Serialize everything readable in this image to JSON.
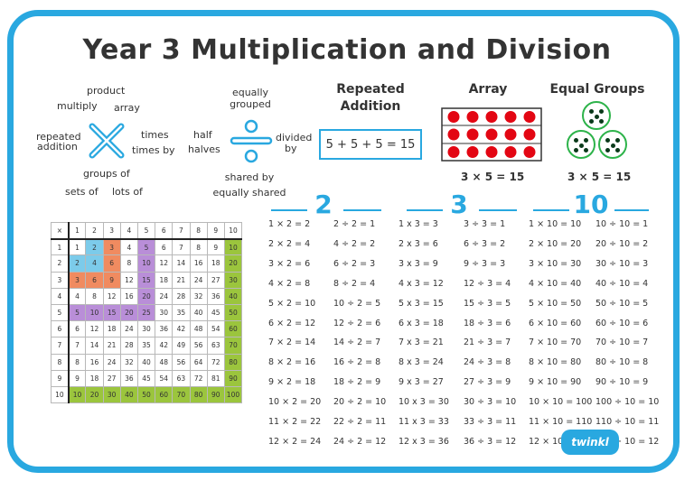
{
  "title": "Year 3 Multiplication and Division",
  "colors": {
    "accent": "#29a8e0",
    "red": "#e30613",
    "green": "#2db34a",
    "grid_green": "#9bc53d",
    "grid_blue": "#7ccbea",
    "grid_orange": "#f08b60",
    "grid_purple": "#b98ed8"
  },
  "mult_words": {
    "product": "product",
    "multiply": "multiply",
    "array": "array",
    "repeated": "repeated",
    "addition": "addition",
    "times": "times",
    "times_by": "times by",
    "groups_of": "groups of",
    "sets_of": "sets of",
    "lots_of": "lots of"
  },
  "div_words": {
    "equally": "equally",
    "grouped": "grouped",
    "half": "half",
    "halves": "halves",
    "divided": "divided",
    "by": "by",
    "shared_by": "shared by",
    "equally_shared": "equally shared"
  },
  "repeated_addition": {
    "heading_line1": "Repeated",
    "heading_line2": "Addition",
    "equation": "5 + 5 + 5 = 15"
  },
  "array": {
    "heading": "Array",
    "equation": "3 × 5 = 15",
    "rows": 3,
    "cols": 5
  },
  "equal_groups": {
    "heading": "Equal Groups",
    "equation": "3 × 5 = 15",
    "groups": 3,
    "per_group": 5
  },
  "tables": [
    {
      "number": "2",
      "mult": [
        "1 × 2 = 2",
        "2 × 2 = 4",
        "3 × 2 = 6",
        "4 × 2 = 8",
        "5 × 2 = 10",
        "6 × 2 = 12",
        "7 × 2 = 14",
        "8 × 2 = 16",
        "9 × 2 = 18",
        "10 × 2 = 20",
        "11 × 2 = 22",
        "12 × 2 = 24"
      ],
      "div": [
        "2 ÷ 2 = 1",
        "4 ÷ 2 = 2",
        "6 ÷ 2 = 3",
        "8 ÷ 2 = 4",
        "10 ÷ 2 = 5",
        "12 ÷ 2 = 6",
        "14 ÷ 2 = 7",
        "16 ÷ 2 = 8",
        "18 ÷ 2 = 9",
        "20 ÷ 2 = 10",
        "22 ÷ 2 = 11",
        "24 ÷ 2 = 12"
      ]
    },
    {
      "number": "3",
      "mult": [
        "1 x 3 = 3",
        "2 x 3 = 6",
        "3 x 3 = 9",
        "4 x 3 = 12",
        "5 x 3 = 15",
        "6 x 3 = 18",
        "7 x 3 = 21",
        "8 x 3 = 24",
        "9 x 3 = 27",
        "10 x 3 = 30",
        "11 x 3 = 33",
        "12 x 3 = 36"
      ],
      "div": [
        "3 ÷ 3 = 1",
        "6 ÷ 3 = 2",
        "9 ÷ 3 = 3",
        "12 ÷ 3 = 4",
        "15 ÷ 3 = 5",
        "18 ÷ 3 = 6",
        "21 ÷ 3 = 7",
        "24 ÷ 3 = 8",
        "27 ÷ 3 = 9",
        "30 ÷ 3 = 10",
        "33 ÷ 3 = 11",
        "36 ÷ 3 = 12"
      ]
    },
    {
      "number": "10",
      "mult": [
        "1 × 10 = 10",
        "2 × 10 = 20",
        "3 × 10 = 30",
        "4 × 10 = 40",
        "5 × 10 = 50",
        "6 × 10 = 60",
        "7 × 10 = 70",
        "8 × 10 = 80",
        "9 × 10 = 90",
        "10 × 10 = 100",
        "11 × 10 = 110",
        "12 × 10 = 120"
      ],
      "div": [
        "10 ÷ 10 = 1",
        "20 ÷ 10 = 2",
        "30 ÷ 10 = 3",
        "40 ÷ 10 = 4",
        "50 ÷ 10 = 5",
        "60 ÷ 10 = 6",
        "70 ÷ 10 = 7",
        "80 ÷ 10 = 8",
        "90 ÷ 10 = 9",
        "100 ÷ 10 = 10",
        "110 ÷ 10 = 11",
        "120 ÷ 10 = 12"
      ]
    }
  ],
  "grid": {
    "corner": "×",
    "size": 10
  },
  "logo": {
    "text": "twinkl"
  }
}
